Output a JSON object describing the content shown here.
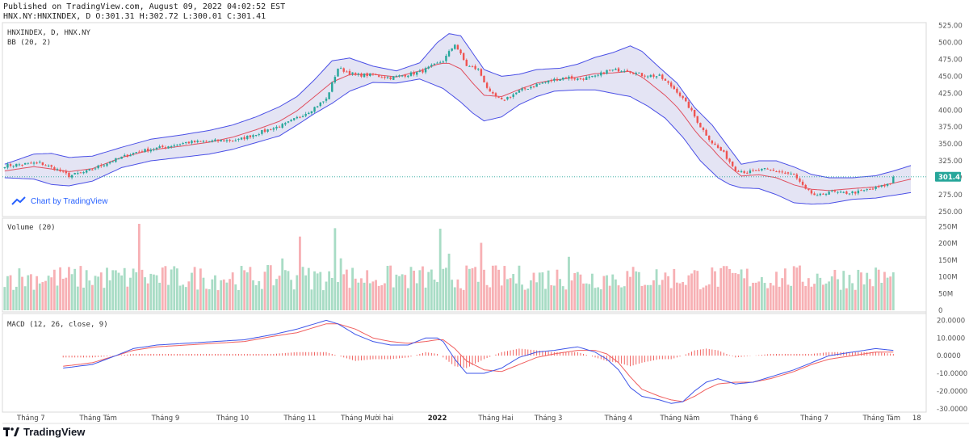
{
  "header": {
    "published": "Published on TradingView.com, August 09, 2022 04:02:52 EST",
    "ohlc": "HNX.NY:HNXINDEX, D O:301.31 H:302.72 L:300.01 C:301.41"
  },
  "credit": "Chart by TradingView",
  "footer_brand": "TradingView",
  "colors": {
    "up": "#26a69a",
    "down": "#ef5350",
    "up_vol": "#a8dcc5",
    "down_vol": "#f7b0b4",
    "band_fill": "#d9d9f0",
    "band_line": "#4b50e6",
    "basis": "#e05060",
    "macd": "#3e55e8",
    "signal": "#f06060",
    "hist": "#ef5350",
    "last_tag": "#26a69a"
  },
  "chart_data": [
    {
      "type": "candlestick",
      "panel": "price",
      "legend": [
        "HNXINDEX, D, HNX.NY",
        "BB (20, 2)"
      ],
      "ylim": [
        245,
        527
      ],
      "y_ticks": [
        "525.00",
        "500.00",
        "475.00",
        "450.00",
        "425.00",
        "400.00",
        "375.00",
        "350.00",
        "325.00",
        "300.00",
        "275.00",
        "250.00"
      ],
      "last_value": "301.41",
      "anchors": [
        [
          0,
          318
        ],
        [
          12,
          322
        ],
        [
          18,
          312
        ],
        [
          22,
          303
        ],
        [
          28,
          309
        ],
        [
          35,
          322
        ],
        [
          45,
          338
        ],
        [
          55,
          346
        ],
        [
          62,
          352
        ],
        [
          70,
          354
        ],
        [
          80,
          356
        ],
        [
          88,
          368
        ],
        [
          96,
          379
        ],
        [
          104,
          398
        ],
        [
          110,
          416
        ],
        [
          114,
          462
        ],
        [
          120,
          452
        ],
        [
          126,
          452
        ],
        [
          132,
          448
        ],
        [
          142,
          456
        ],
        [
          150,
          473
        ],
        [
          154,
          498
        ],
        [
          158,
          466
        ],
        [
          162,
          460
        ],
        [
          166,
          425
        ],
        [
          170,
          414
        ],
        [
          176,
          428
        ],
        [
          182,
          438
        ],
        [
          188,
          445
        ],
        [
          192,
          449
        ],
        [
          196,
          446
        ],
        [
          202,
          449
        ],
        [
          206,
          458
        ],
        [
          212,
          460
        ],
        [
          218,
          452
        ],
        [
          224,
          450
        ],
        [
          230,
          428
        ],
        [
          234,
          405
        ],
        [
          238,
          376
        ],
        [
          242,
          352
        ],
        [
          246,
          336
        ],
        [
          250,
          312
        ],
        [
          254,
          308
        ],
        [
          260,
          312
        ],
        [
          266,
          308
        ],
        [
          270,
          304
        ],
        [
          274,
          282
        ],
        [
          278,
          272
        ],
        [
          282,
          280
        ],
        [
          286,
          277
        ],
        [
          292,
          279
        ],
        [
          300,
          287
        ],
        [
          306,
          296
        ],
        [
          310,
          302
        ]
      ],
      "bb_upper": [
        [
          0,
          320
        ],
        [
          10,
          335
        ],
        [
          16,
          336
        ],
        [
          22,
          330
        ],
        [
          30,
          332
        ],
        [
          40,
          345
        ],
        [
          50,
          357
        ],
        [
          60,
          363
        ],
        [
          70,
          370
        ],
        [
          78,
          378
        ],
        [
          86,
          390
        ],
        [
          94,
          405
        ],
        [
          100,
          420
        ],
        [
          106,
          445
        ],
        [
          112,
          473
        ],
        [
          118,
          477
        ],
        [
          126,
          465
        ],
        [
          134,
          458
        ],
        [
          142,
          470
        ],
        [
          148,
          500
        ],
        [
          152,
          513
        ],
        [
          156,
          510
        ],
        [
          160,
          485
        ],
        [
          164,
          460
        ],
        [
          170,
          450
        ],
        [
          176,
          453
        ],
        [
          182,
          460
        ],
        [
          190,
          462
        ],
        [
          196,
          468
        ],
        [
          202,
          478
        ],
        [
          208,
          485
        ],
        [
          214,
          495
        ],
        [
          218,
          487
        ],
        [
          224,
          463
        ],
        [
          230,
          440
        ],
        [
          236,
          404
        ],
        [
          242,
          378
        ],
        [
          248,
          343
        ],
        [
          252,
          320
        ],
        [
          258,
          325
        ],
        [
          264,
          325
        ],
        [
          270,
          316
        ],
        [
          276,
          305
        ],
        [
          282,
          300
        ],
        [
          290,
          300
        ],
        [
          298,
          303
        ],
        [
          304,
          310
        ],
        [
          310,
          318
        ]
      ],
      "bb_lower": [
        [
          0,
          300
        ],
        [
          10,
          298
        ],
        [
          16,
          290
        ],
        [
          22,
          288
        ],
        [
          30,
          295
        ],
        [
          40,
          315
        ],
        [
          50,
          325
        ],
        [
          60,
          330
        ],
        [
          70,
          335
        ],
        [
          78,
          342
        ],
        [
          86,
          352
        ],
        [
          94,
          362
        ],
        [
          100,
          378
        ],
        [
          106,
          395
        ],
        [
          112,
          410
        ],
        [
          118,
          428
        ],
        [
          126,
          441
        ],
        [
          134,
          440
        ],
        [
          142,
          446
        ],
        [
          150,
          432
        ],
        [
          156,
          412
        ],
        [
          160,
          396
        ],
        [
          164,
          384
        ],
        [
          170,
          390
        ],
        [
          176,
          408
        ],
        [
          182,
          420
        ],
        [
          188,
          428
        ],
        [
          196,
          430
        ],
        [
          202,
          430
        ],
        [
          208,
          425
        ],
        [
          214,
          420
        ],
        [
          220,
          406
        ],
        [
          226,
          388
        ],
        [
          232,
          360
        ],
        [
          238,
          325
        ],
        [
          244,
          300
        ],
        [
          248,
          290
        ],
        [
          252,
          285
        ],
        [
          258,
          284
        ],
        [
          264,
          275
        ],
        [
          270,
          263
        ],
        [
          276,
          261
        ],
        [
          282,
          262
        ],
        [
          290,
          268
        ],
        [
          298,
          270
        ],
        [
          304,
          274
        ],
        [
          310,
          278
        ]
      ]
    },
    {
      "type": "bar",
      "panel": "volume",
      "legend": "Volume (20)",
      "ylim": [
        0,
        270
      ],
      "y_ticks": [
        "250M",
        "200M",
        "150M",
        "100M",
        "50M",
        "0"
      ]
    },
    {
      "type": "line",
      "panel": "macd",
      "legend": "MACD (12, 26, close, 9)",
      "ylim": [
        -31,
        22
      ],
      "y_ticks": [
        "20.0000",
        "10.0000",
        "0.0000",
        "-10.0000",
        "-20.0000",
        "-30.0000"
      ],
      "macd": [
        [
          20,
          -7
        ],
        [
          30,
          -5
        ],
        [
          38,
          0
        ],
        [
          44,
          4
        ],
        [
          52,
          6
        ],
        [
          62,
          7
        ],
        [
          72,
          8
        ],
        [
          82,
          9
        ],
        [
          92,
          12
        ],
        [
          100,
          15
        ],
        [
          106,
          18
        ],
        [
          110,
          20
        ],
        [
          114,
          18
        ],
        [
          120,
          12
        ],
        [
          126,
          8
        ],
        [
          132,
          6
        ],
        [
          138,
          6
        ],
        [
          144,
          10
        ],
        [
          148,
          10
        ],
        [
          150,
          8
        ],
        [
          154,
          -2
        ],
        [
          158,
          -10
        ],
        [
          164,
          -10
        ],
        [
          170,
          -7
        ],
        [
          176,
          -1
        ],
        [
          182,
          2
        ],
        [
          188,
          3
        ],
        [
          196,
          5
        ],
        [
          202,
          2
        ],
        [
          206,
          -2
        ],
        [
          210,
          -8
        ],
        [
          214,
          -18
        ],
        [
          218,
          -23
        ],
        [
          224,
          -25
        ],
        [
          228,
          -27
        ],
        [
          232,
          -26
        ],
        [
          236,
          -20
        ],
        [
          240,
          -15
        ],
        [
          244,
          -13
        ],
        [
          250,
          -16
        ],
        [
          256,
          -15
        ],
        [
          262,
          -12
        ],
        [
          270,
          -8
        ],
        [
          276,
          -4
        ],
        [
          282,
          0
        ],
        [
          290,
          2
        ],
        [
          298,
          4
        ],
        [
          304,
          3
        ]
      ],
      "signal": [
        [
          20,
          -6
        ],
        [
          30,
          -4
        ],
        [
          38,
          0
        ],
        [
          44,
          3
        ],
        [
          52,
          5
        ],
        [
          62,
          6
        ],
        [
          72,
          7
        ],
        [
          82,
          8
        ],
        [
          92,
          11
        ],
        [
          100,
          13
        ],
        [
          106,
          16
        ],
        [
          110,
          18
        ],
        [
          114,
          18
        ],
        [
          120,
          15
        ],
        [
          126,
          10
        ],
        [
          132,
          8
        ],
        [
          138,
          7
        ],
        [
          144,
          8
        ],
        [
          148,
          9
        ],
        [
          150,
          9
        ],
        [
          154,
          4
        ],
        [
          158,
          -3
        ],
        [
          164,
          -8
        ],
        [
          170,
          -9
        ],
        [
          176,
          -5
        ],
        [
          182,
          -1
        ],
        [
          188,
          1
        ],
        [
          196,
          3
        ],
        [
          202,
          3
        ],
        [
          206,
          1
        ],
        [
          210,
          -4
        ],
        [
          214,
          -12
        ],
        [
          218,
          -19
        ],
        [
          224,
          -23
        ],
        [
          228,
          -25
        ],
        [
          232,
          -26
        ],
        [
          236,
          -23
        ],
        [
          240,
          -19
        ],
        [
          244,
          -16
        ],
        [
          250,
          -15
        ],
        [
          256,
          -15
        ],
        [
          262,
          -13
        ],
        [
          270,
          -9
        ],
        [
          276,
          -5
        ],
        [
          282,
          -2
        ],
        [
          290,
          0
        ],
        [
          298,
          2
        ],
        [
          304,
          2
        ]
      ]
    }
  ],
  "x_labels": [
    {
      "t": 9,
      "text": "Tháng 7"
    },
    {
      "t": 32,
      "text": "Tháng Tám"
    },
    {
      "t": 55,
      "text": "Tháng 9"
    },
    {
      "t": 78,
      "text": "Tháng 10"
    },
    {
      "t": 101,
      "text": "Tháng 11"
    },
    {
      "t": 124,
      "text": "Tháng Mười hai"
    },
    {
      "t": 148,
      "text": "2022",
      "bold": true
    },
    {
      "t": 168,
      "text": "Tháng Hai"
    },
    {
      "t": 186,
      "text": "Tháng 3"
    },
    {
      "t": 210,
      "text": "Tháng 4"
    },
    {
      "t": 231,
      "text": "Tháng Năm"
    },
    {
      "t": 253,
      "text": "Tháng 6"
    },
    {
      "t": 277,
      "text": "Tháng 7"
    },
    {
      "t": 300,
      "text": "Tháng Tám"
    },
    {
      "t": 312,
      "text": "18"
    }
  ]
}
